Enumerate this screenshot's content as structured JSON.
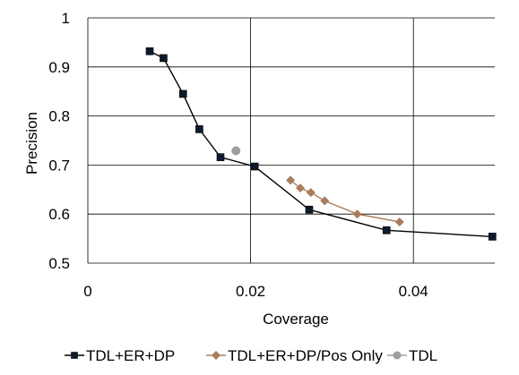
{
  "chart_data": {
    "type": "scatter",
    "title": "",
    "xlabel": "Coverage",
    "ylabel": "Precision",
    "xlim": [
      0,
      0.05
    ],
    "ylim": [
      0.5,
      1.0
    ],
    "x_ticks": [
      0,
      0.02,
      0.04
    ],
    "x_tick_labels": [
      "0",
      "0.02",
      "0.04"
    ],
    "y_ticks": [
      0.5,
      0.6,
      0.7,
      0.8,
      0.9,
      1.0
    ],
    "y_tick_labels": [
      "0.5",
      "0.6",
      "0.7",
      "0.8",
      "0.9",
      "1"
    ],
    "grid": "major gridlines on both axes",
    "legend_position": "bottom",
    "series": [
      {
        "name": "TDL+ER+DP",
        "marker": "square",
        "color": "#0d1b2e",
        "line_color": "#000000",
        "points": [
          [
            0.0076,
            0.932
          ],
          [
            0.0093,
            0.918
          ],
          [
            0.0117,
            0.845
          ],
          [
            0.0137,
            0.773
          ],
          [
            0.0163,
            0.716
          ],
          [
            0.0205,
            0.697
          ],
          [
            0.0272,
            0.609
          ],
          [
            0.0367,
            0.567
          ],
          [
            0.0497,
            0.554
          ]
        ]
      },
      {
        "name": "TDL+ER+DP/Pos Only",
        "marker": "diamond",
        "color": "#a97c5d",
        "line_color": "#a97c5d",
        "points": [
          [
            0.0249,
            0.669
          ],
          [
            0.0261,
            0.653
          ],
          [
            0.0274,
            0.644
          ],
          [
            0.0291,
            0.627
          ],
          [
            0.0331,
            0.6
          ],
          [
            0.0383,
            0.584
          ]
        ]
      },
      {
        "name": "TDL",
        "marker": "circle",
        "color": "#9e9e9e",
        "line_color": "#9e9e9e",
        "points": [
          [
            0.0182,
            0.729
          ]
        ]
      }
    ]
  }
}
